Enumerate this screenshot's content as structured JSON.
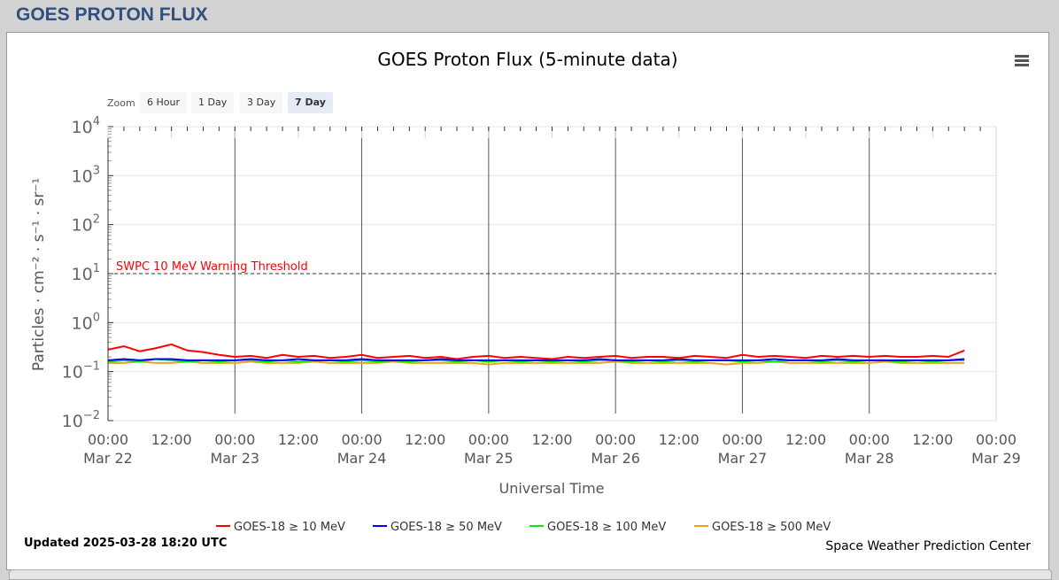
{
  "header": {
    "title": "GOES PROTON FLUX"
  },
  "zoom": {
    "label": "Zoom",
    "buttons": [
      "6 Hour",
      "1 Day",
      "3 Day",
      "7 Day"
    ],
    "selected": "7 Day"
  },
  "footer": {
    "updated": "Updated 2025-03-28 18:20 UTC",
    "credit": "Space Weather Prediction Center"
  },
  "chart_data": {
    "type": "line",
    "title": "GOES Proton Flux (5-minute data)",
    "xlabel": "Universal Time",
    "ylabel": "Particles · cm⁻² · s⁻¹ · sr⁻¹",
    "yscale": "log",
    "ylim": [
      0.01,
      10000
    ],
    "ytick_labels": [
      {
        "base": "10",
        "exp": "4",
        "v": 10000
      },
      {
        "base": "10",
        "exp": "3",
        "v": 1000
      },
      {
        "base": "10",
        "exp": "2",
        "v": 100
      },
      {
        "base": "10",
        "exp": "1",
        "v": 10
      },
      {
        "base": "10",
        "exp": "0",
        "v": 1
      },
      {
        "base": "10",
        "exp": "−1",
        "v": 0.1
      },
      {
        "base": "10",
        "exp": "−2",
        "v": 0.01
      }
    ],
    "xlim_hours": [
      0,
      168
    ],
    "xticks": [
      {
        "h": 0,
        "t": "00:00",
        "d": "Mar 22"
      },
      {
        "h": 12,
        "t": "12:00",
        "d": ""
      },
      {
        "h": 24,
        "t": "00:00",
        "d": "Mar 23"
      },
      {
        "h": 36,
        "t": "12:00",
        "d": ""
      },
      {
        "h": 48,
        "t": "00:00",
        "d": "Mar 24"
      },
      {
        "h": 60,
        "t": "12:00",
        "d": ""
      },
      {
        "h": 72,
        "t": "00:00",
        "d": "Mar 25"
      },
      {
        "h": 84,
        "t": "12:00",
        "d": ""
      },
      {
        "h": 96,
        "t": "00:00",
        "d": "Mar 26"
      },
      {
        "h": 108,
        "t": "12:00",
        "d": ""
      },
      {
        "h": 120,
        "t": "00:00",
        "d": "Mar 27"
      },
      {
        "h": 132,
        "t": "12:00",
        "d": ""
      },
      {
        "h": 144,
        "t": "00:00",
        "d": "Mar 28"
      },
      {
        "h": 156,
        "t": "12:00",
        "d": ""
      },
      {
        "h": 168,
        "t": "00:00",
        "d": "Mar 29"
      }
    ],
    "threshold": {
      "value": 10,
      "label": "SWPC 10 MeV Warning Threshold",
      "color": "#ff0000"
    },
    "x_step_hours": 3,
    "series": [
      {
        "name": "GOES-18 ≥ 10 MeV",
        "color": "#ff0000",
        "values": [
          0.28,
          0.33,
          0.26,
          0.3,
          0.36,
          0.27,
          0.25,
          0.22,
          0.2,
          0.21,
          0.19,
          0.22,
          0.2,
          0.21,
          0.19,
          0.2,
          0.22,
          0.19,
          0.2,
          0.21,
          0.19,
          0.2,
          0.18,
          0.2,
          0.21,
          0.19,
          0.2,
          0.19,
          0.18,
          0.2,
          0.19,
          0.2,
          0.21,
          0.19,
          0.2,
          0.2,
          0.19,
          0.21,
          0.2,
          0.19,
          0.22,
          0.2,
          0.21,
          0.2,
          0.19,
          0.21,
          0.2,
          0.21,
          0.2,
          0.21,
          0.2,
          0.2,
          0.21,
          0.2,
          0.27
        ]
      },
      {
        "name": "GOES-18 ≥ 50 MeV",
        "color": "#0000ff",
        "values": [
          0.17,
          0.18,
          0.17,
          0.18,
          0.18,
          0.17,
          0.17,
          0.17,
          0.17,
          0.18,
          0.17,
          0.17,
          0.18,
          0.17,
          0.17,
          0.17,
          0.18,
          0.17,
          0.17,
          0.17,
          0.17,
          0.18,
          0.17,
          0.17,
          0.17,
          0.17,
          0.17,
          0.17,
          0.17,
          0.17,
          0.17,
          0.18,
          0.17,
          0.17,
          0.17,
          0.17,
          0.18,
          0.17,
          0.17,
          0.17,
          0.17,
          0.17,
          0.18,
          0.17,
          0.17,
          0.17,
          0.18,
          0.17,
          0.17,
          0.17,
          0.17,
          0.17,
          0.17,
          0.17,
          0.18
        ]
      },
      {
        "name": "GOES-18 ≥ 100 MeV",
        "color": "#00ee00",
        "values": [
          0.16,
          0.17,
          0.16,
          0.18,
          0.17,
          0.16,
          0.17,
          0.16,
          0.17,
          0.17,
          0.16,
          0.17,
          0.16,
          0.17,
          0.17,
          0.16,
          0.17,
          0.16,
          0.17,
          0.16,
          0.17,
          0.17,
          0.16,
          0.17,
          0.16,
          0.17,
          0.16,
          0.17,
          0.16,
          0.17,
          0.16,
          0.17,
          0.17,
          0.16,
          0.17,
          0.16,
          0.17,
          0.16,
          0.17,
          0.17,
          0.16,
          0.17,
          0.16,
          0.17,
          0.17,
          0.16,
          0.17,
          0.16,
          0.17,
          0.17,
          0.16,
          0.17,
          0.16,
          0.17,
          0.17
        ]
      },
      {
        "name": "GOES-18 ≥ 500 MeV",
        "color": "#f0a020",
        "values": [
          0.15,
          0.15,
          0.16,
          0.15,
          0.15,
          0.16,
          0.15,
          0.15,
          0.15,
          0.16,
          0.15,
          0.15,
          0.15,
          0.16,
          0.15,
          0.15,
          0.15,
          0.15,
          0.16,
          0.15,
          0.15,
          0.15,
          0.15,
          0.15,
          0.14,
          0.15,
          0.15,
          0.15,
          0.15,
          0.15,
          0.15,
          0.15,
          0.16,
          0.15,
          0.15,
          0.15,
          0.15,
          0.15,
          0.15,
          0.14,
          0.15,
          0.15,
          0.16,
          0.15,
          0.15,
          0.15,
          0.15,
          0.15,
          0.15,
          0.16,
          0.15,
          0.15,
          0.15,
          0.15,
          0.15
        ]
      }
    ]
  }
}
